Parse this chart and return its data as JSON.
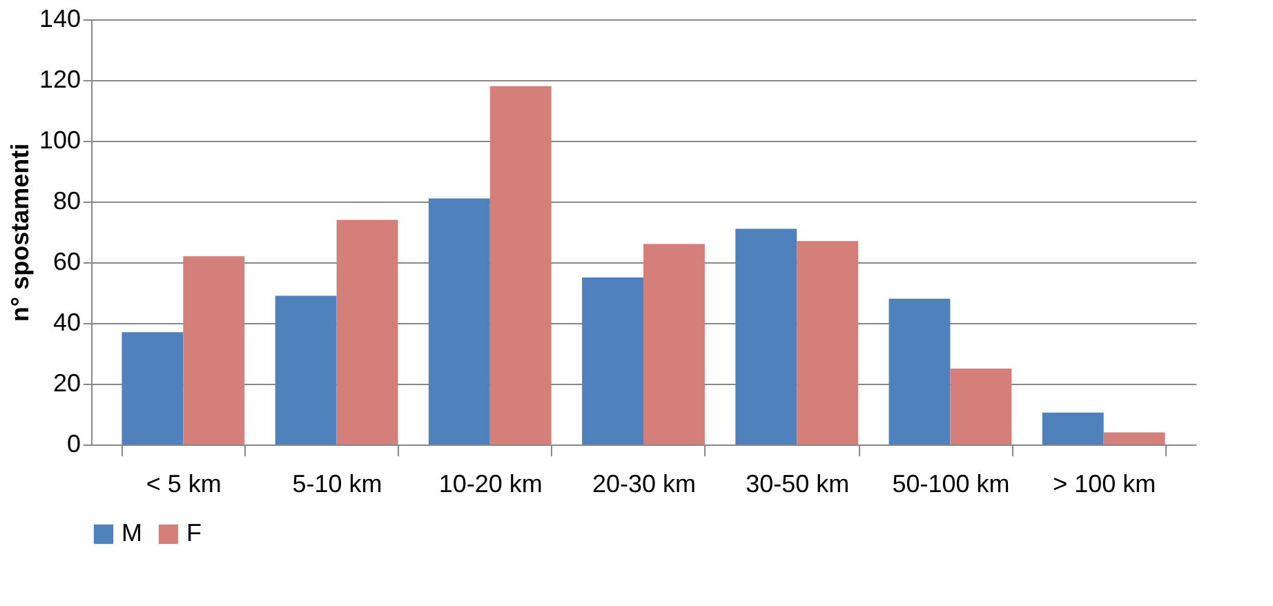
{
  "chart_data": {
    "type": "bar",
    "ylabel": "n° spostamenti",
    "categories": [
      "< 5 km",
      "5-10 km",
      "10-20 km",
      "20-30 km",
      "30-50 km",
      "50-100 km",
      "> 100 km"
    ],
    "series": [
      {
        "name": "M",
        "color": "#4f81bd",
        "values": [
          37,
          49,
          81,
          55,
          71,
          48,
          10.5
        ]
      },
      {
        "name": "F",
        "color": "#d47f7a",
        "values": [
          62,
          74,
          118,
          66,
          67,
          25,
          4
        ]
      }
    ],
    "ylim": [
      0,
      140
    ],
    "yticks": [
      0,
      20,
      40,
      60,
      80,
      100,
      120,
      140
    ],
    "grid": "y",
    "legend": "bottom"
  }
}
